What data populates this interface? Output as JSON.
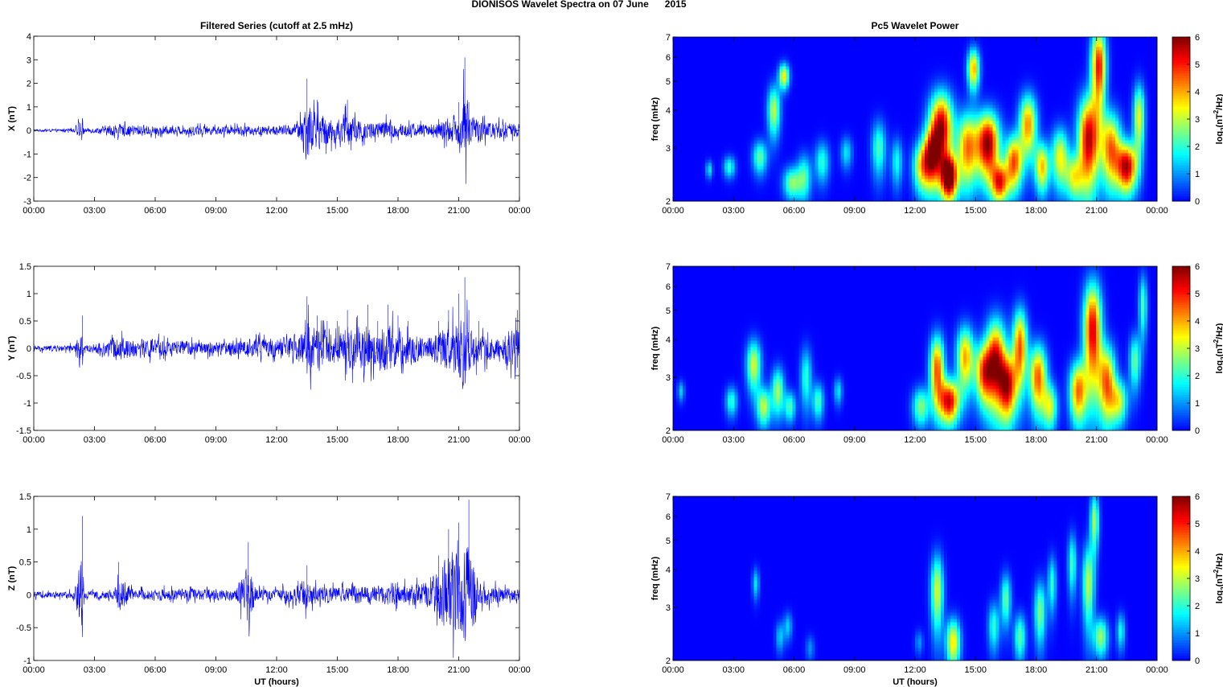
{
  "page": {
    "suptitle": "DIONISOS Wavelet Spectra on 07 June      2015"
  },
  "chart_data": [
    {
      "type": "line",
      "title": "Filtered Series (cutoff at 2.5 mHz)",
      "ylabel": "X (nT)",
      "xlabel": "",
      "xlim": [
        0,
        24
      ],
      "ylim": [
        -3,
        4
      ],
      "yticks": [
        "4",
        "3",
        "2",
        "1",
        "0",
        "-1",
        "-2",
        "-3"
      ],
      "xticks": [
        "00:00",
        "03:00",
        "06:00",
        "09:00",
        "12:00",
        "15:00",
        "18:00",
        "21:00",
        "00:00"
      ],
      "color": "#0000ff",
      "grid": false,
      "series": [
        {
          "x": [
            0,
            1,
            2,
            2.4,
            2.5,
            3,
            4,
            5,
            6,
            7,
            8,
            9,
            10,
            11,
            12,
            13,
            13.5,
            14,
            14.5,
            15,
            15.5,
            16,
            16.5,
            17,
            17.5,
            18,
            18.5,
            19,
            19.5,
            20,
            20.5,
            21,
            21.3,
            21.5,
            22,
            22.5,
            23,
            24
          ],
          "y": [
            0.08,
            0.1,
            0.12,
            0.95,
            0.15,
            0.2,
            0.45,
            0.4,
            0.35,
            0.3,
            0.35,
            0.3,
            0.35,
            0.35,
            0.35,
            0.45,
            2.2,
            1.3,
            1.0,
            0.8,
            1.3,
            0.9,
            0.7,
            0.6,
            0.8,
            0.6,
            0.5,
            0.5,
            0.5,
            0.6,
            0.9,
            1.2,
            3.1,
            1.2,
            0.8,
            0.6,
            0.6,
            0.5
          ]
        }
      ]
    },
    {
      "type": "line",
      "title": "",
      "ylabel": "Y (nT)",
      "xlabel": "",
      "xlim": [
        0,
        24
      ],
      "ylim": [
        -1.5,
        1.5
      ],
      "yticks": [
        "1.5",
        "1",
        "0.5",
        "0",
        "-0.5",
        "-1",
        "-1.5"
      ],
      "xticks": [
        "00:00",
        "03:00",
        "06:00",
        "09:00",
        "12:00",
        "15:00",
        "18:00",
        "21:00",
        "00:00"
      ],
      "color": "#0000ff",
      "grid": false,
      "series": [
        {
          "x": [
            0,
            1,
            2,
            2.4,
            2.5,
            3,
            4,
            5,
            6,
            7,
            8,
            9,
            10,
            11,
            12,
            13,
            13.5,
            14,
            14.5,
            15,
            15.5,
            16,
            16.5,
            17,
            17.5,
            18,
            18.5,
            19,
            19.5,
            20,
            20.5,
            21,
            21.3,
            21.5,
            22,
            22.5,
            23,
            23.9,
            24
          ],
          "y": [
            0.08,
            0.1,
            0.1,
            0.6,
            0.1,
            0.15,
            0.35,
            0.3,
            0.3,
            0.25,
            0.2,
            0.2,
            0.25,
            0.3,
            0.3,
            0.4,
            0.95,
            0.6,
            0.5,
            0.5,
            0.7,
            0.6,
            0.8,
            0.5,
            0.8,
            0.6,
            0.5,
            0.4,
            0.4,
            0.5,
            0.7,
            1.0,
            1.3,
            0.7,
            0.5,
            0.4,
            0.4,
            0.7,
            0.5
          ]
        }
      ]
    },
    {
      "type": "line",
      "title": "",
      "ylabel": "Z (nT)",
      "xlabel": "UT (hours)",
      "xlim": [
        0,
        24
      ],
      "ylim": [
        -1,
        1.5
      ],
      "yticks": [
        "1.5",
        "1",
        "0.5",
        "0",
        "-0.5",
        "-1"
      ],
      "xticks": [
        "00:00",
        "03:00",
        "06:00",
        "09:00",
        "12:00",
        "15:00",
        "18:00",
        "21:00",
        "00:00"
      ],
      "color": "#0000ff",
      "grid": false,
      "series": [
        {
          "x": [
            0,
            1,
            2,
            2.4,
            2.5,
            3,
            4,
            4.2,
            5,
            6,
            7,
            8,
            9,
            10,
            10.6,
            11,
            12,
            13,
            13.5,
            14,
            15,
            16,
            17,
            18,
            19,
            19.5,
            20,
            20.5,
            21,
            21.5,
            22,
            23,
            24
          ],
          "y": [
            0.08,
            0.08,
            0.1,
            1.2,
            0.1,
            0.1,
            0.15,
            0.5,
            0.12,
            0.15,
            0.15,
            0.15,
            0.15,
            0.15,
            0.8,
            0.15,
            0.15,
            0.25,
            0.45,
            0.2,
            0.2,
            0.25,
            0.25,
            0.25,
            0.3,
            0.3,
            0.6,
            1.0,
            1.1,
            1.45,
            0.3,
            0.2,
            0.15
          ]
        }
      ]
    },
    {
      "type": "heatmap",
      "title": "Pc5 Wavelet Power",
      "ylabel": "freq (mHz)",
      "xlabel": "",
      "xlim": [
        0,
        24
      ],
      "ylim": [
        2,
        7
      ],
      "yscale": "log",
      "yticks": [
        2,
        3,
        4,
        5,
        6,
        7
      ],
      "xticks": [
        "00:00",
        "03:00",
        "06:00",
        "09:00",
        "12:00",
        "15:00",
        "18:00",
        "21:00",
        "00:00"
      ],
      "colorbar": {
        "label": "log2(nT2/Hz)",
        "min": 0,
        "max": 6,
        "ticks": [
          "6",
          "5",
          "4",
          "3",
          "2",
          "1",
          "0"
        ],
        "colormap": "jet"
      },
      "blobs": [
        [
          1.8,
          2.55,
          0.12,
          0.12,
          1.6
        ],
        [
          2.8,
          2.6,
          0.2,
          0.15,
          2.0
        ],
        [
          4.3,
          2.8,
          0.25,
          0.25,
          2.4
        ],
        [
          5.0,
          4.0,
          0.22,
          0.55,
          3.0
        ],
        [
          5.5,
          5.2,
          0.18,
          0.35,
          3.6
        ],
        [
          5.9,
          2.3,
          0.3,
          0.2,
          2.6
        ],
        [
          6.5,
          2.4,
          0.25,
          0.3,
          2.2
        ],
        [
          7.4,
          2.7,
          0.25,
          0.3,
          2.0
        ],
        [
          8.6,
          2.9,
          0.2,
          0.25,
          1.6
        ],
        [
          10.2,
          3.0,
          0.25,
          0.45,
          2.2
        ],
        [
          11.1,
          2.7,
          0.2,
          0.35,
          1.8
        ],
        [
          12.3,
          2.6,
          0.3,
          0.35,
          3.0
        ],
        [
          12.8,
          2.8,
          0.3,
          0.45,
          4.5
        ],
        [
          13.3,
          3.5,
          0.4,
          0.7,
          5.8
        ],
        [
          13.7,
          2.4,
          0.3,
          0.3,
          6.2
        ],
        [
          14.6,
          3.0,
          0.35,
          0.6,
          4.2
        ],
        [
          14.9,
          5.5,
          0.2,
          0.6,
          4.0
        ],
        [
          15.6,
          3.1,
          0.4,
          0.55,
          6.0
        ],
        [
          16.2,
          2.3,
          0.3,
          0.25,
          4.6
        ],
        [
          16.9,
          2.7,
          0.3,
          0.4,
          4.6
        ],
        [
          17.6,
          3.6,
          0.3,
          0.6,
          4.2
        ],
        [
          18.3,
          2.6,
          0.25,
          0.35,
          3.8
        ],
        [
          19.2,
          2.8,
          0.3,
          0.45,
          3.4
        ],
        [
          19.9,
          2.4,
          0.3,
          0.3,
          3.0
        ],
        [
          20.6,
          3.2,
          0.35,
          0.8,
          5.6
        ],
        [
          21.1,
          5.6,
          0.25,
          1.2,
          5.2
        ],
        [
          21.7,
          3.0,
          0.35,
          0.6,
          4.4
        ],
        [
          22.5,
          2.6,
          0.35,
          0.35,
          5.6
        ],
        [
          23.1,
          3.8,
          0.2,
          0.7,
          3.4
        ]
      ]
    },
    {
      "type": "heatmap",
      "title": "",
      "ylabel": "freq (mHz)",
      "xlabel": "",
      "xlim": [
        0,
        24
      ],
      "ylim": [
        2,
        7
      ],
      "yscale": "log",
      "yticks": [
        2,
        3,
        4,
        5,
        6,
        7
      ],
      "xticks": [
        "00:00",
        "03:00",
        "06:00",
        "09:00",
        "12:00",
        "15:00",
        "18:00",
        "21:00",
        "00:00"
      ],
      "colorbar": {
        "label": "log2(nT2/Hz)",
        "min": 0,
        "max": 6,
        "ticks": [
          "6",
          "5",
          "4",
          "3",
          "2",
          "1",
          "0"
        ],
        "colormap": "jet"
      },
      "blobs": [
        [
          0.4,
          2.7,
          0.12,
          0.15,
          1.4
        ],
        [
          2.9,
          2.5,
          0.2,
          0.2,
          2.0
        ],
        [
          4.0,
          3.3,
          0.25,
          0.45,
          3.2
        ],
        [
          4.5,
          2.4,
          0.25,
          0.25,
          3.0
        ],
        [
          5.2,
          2.7,
          0.22,
          0.35,
          2.8
        ],
        [
          5.8,
          2.4,
          0.2,
          0.2,
          2.2
        ],
        [
          6.6,
          3.0,
          0.2,
          0.5,
          2.0
        ],
        [
          7.2,
          2.5,
          0.2,
          0.25,
          2.2
        ],
        [
          8.2,
          2.7,
          0.15,
          0.2,
          1.6
        ],
        [
          12.3,
          2.4,
          0.3,
          0.25,
          2.6
        ],
        [
          13.1,
          3.2,
          0.25,
          0.6,
          4.6
        ],
        [
          13.7,
          2.5,
          0.35,
          0.3,
          5.4
        ],
        [
          14.5,
          3.5,
          0.3,
          0.6,
          4.0
        ],
        [
          15.4,
          3.1,
          0.3,
          0.5,
          4.2
        ],
        [
          16.0,
          3.4,
          0.35,
          0.8,
          5.4
        ],
        [
          16.6,
          2.8,
          0.3,
          0.5,
          5.0
        ],
        [
          17.2,
          3.8,
          0.25,
          0.8,
          4.6
        ],
        [
          18.1,
          3.0,
          0.3,
          0.55,
          4.6
        ],
        [
          18.7,
          2.4,
          0.25,
          0.3,
          3.0
        ],
        [
          20.1,
          2.7,
          0.3,
          0.45,
          4.4
        ],
        [
          20.8,
          4.3,
          0.3,
          1.2,
          5.4
        ],
        [
          21.5,
          2.9,
          0.3,
          0.6,
          4.4
        ],
        [
          22.1,
          2.5,
          0.3,
          0.3,
          3.0
        ],
        [
          22.9,
          3.4,
          0.2,
          0.5,
          2.4
        ],
        [
          23.3,
          5.2,
          0.15,
          0.9,
          2.2
        ]
      ]
    },
    {
      "type": "heatmap",
      "title": "",
      "ylabel": "freq (mHz)",
      "xlabel": "UT (hours)",
      "xlim": [
        0,
        24
      ],
      "ylim": [
        2,
        7
      ],
      "yscale": "log",
      "yticks": [
        2,
        3,
        4,
        5,
        6,
        7
      ],
      "xticks": [
        "00:00",
        "03:00",
        "06:00",
        "09:00",
        "12:00",
        "15:00",
        "18:00",
        "21:00",
        "00:00"
      ],
      "colorbar": {
        "label": "log2(nT2/Hz)",
        "min": 0,
        "max": 6,
        "ticks": [
          "6",
          "5",
          "4",
          "3",
          "2",
          "1",
          "0"
        ],
        "colormap": "jet"
      },
      "blobs": [
        [
          4.1,
          3.6,
          0.12,
          0.3,
          1.6
        ],
        [
          5.3,
          2.4,
          0.15,
          0.2,
          1.4
        ],
        [
          5.7,
          2.6,
          0.15,
          0.2,
          1.4
        ],
        [
          6.8,
          2.2,
          0.15,
          0.15,
          1.0
        ],
        [
          12.2,
          2.3,
          0.15,
          0.15,
          1.0
        ],
        [
          13.1,
          3.4,
          0.22,
          0.7,
          3.2
        ],
        [
          13.9,
          2.3,
          0.25,
          0.3,
          3.6
        ],
        [
          15.9,
          2.6,
          0.2,
          0.35,
          2.0
        ],
        [
          16.5,
          3.2,
          0.18,
          0.45,
          2.4
        ],
        [
          17.2,
          2.4,
          0.2,
          0.3,
          2.4
        ],
        [
          18.2,
          2.9,
          0.2,
          0.5,
          2.6
        ],
        [
          18.8,
          3.6,
          0.15,
          0.55,
          2.0
        ],
        [
          19.8,
          4.2,
          0.15,
          0.7,
          2.2
        ],
        [
          20.6,
          3.6,
          0.2,
          0.8,
          3.0
        ],
        [
          20.9,
          5.8,
          0.15,
          0.9,
          2.8
        ],
        [
          21.2,
          2.4,
          0.25,
          0.25,
          2.8
        ],
        [
          22.2,
          2.5,
          0.15,
          0.25,
          1.8
        ]
      ]
    }
  ]
}
